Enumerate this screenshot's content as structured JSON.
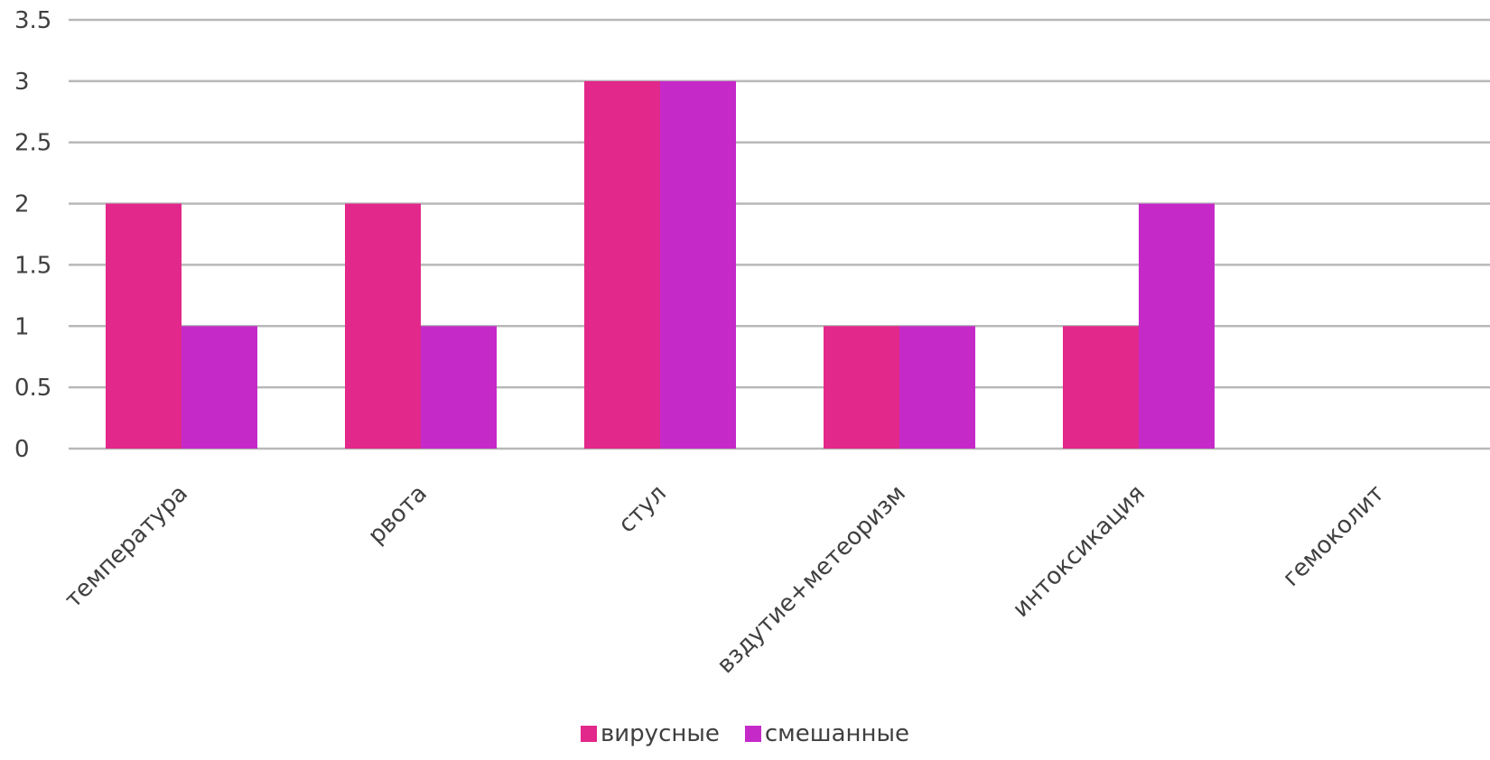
{
  "chart_data": {
    "type": "bar",
    "categories": [
      "температура",
      "рвота",
      "стул",
      "вздутие+метеоризм",
      "интоксикация",
      "гемоколит"
    ],
    "series": [
      {
        "name": "вирусные",
        "values": [
          2,
          2,
          3,
          1,
          1,
          0
        ],
        "color": "#e2288a"
      },
      {
        "name": "смешанные",
        "values": [
          1,
          1,
          3,
          1,
          2,
          0
        ],
        "color": "#c52ac9"
      }
    ],
    "yticks": [
      "0",
      "0.5",
      "1",
      "1.5",
      "2",
      "2.5",
      "3",
      "3.5"
    ],
    "ylim": [
      0,
      3.5
    ],
    "grid": true,
    "legend_position": "bottom"
  }
}
